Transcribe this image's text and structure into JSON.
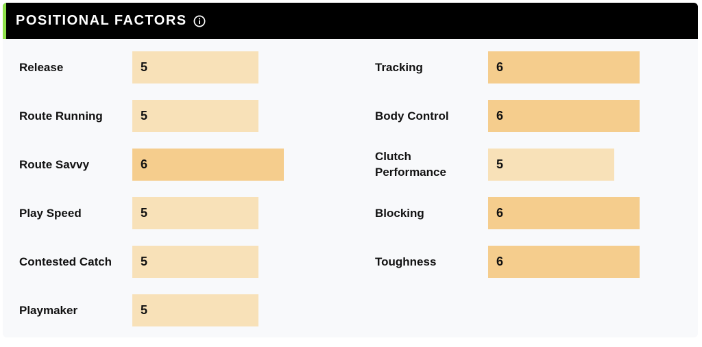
{
  "header": {
    "title": "POSITIONAL FACTORS",
    "info_icon": "info-circle-icon",
    "accent_color": "#8ee04a"
  },
  "colors": {
    "level_5": "#f8e1b8",
    "level_6": "#f5cd8d"
  },
  "factors_left": [
    {
      "label": "Release",
      "value": "5"
    },
    {
      "label": "Route Running",
      "value": "5"
    },
    {
      "label": "Route Savvy",
      "value": "6"
    },
    {
      "label": "Play Speed",
      "value": "5"
    },
    {
      "label": "Contested Catch",
      "value": "5"
    },
    {
      "label": "Playmaker",
      "value": "5"
    }
  ],
  "factors_right": [
    {
      "label": "Tracking",
      "value": "6"
    },
    {
      "label": "Body Control",
      "value": "6"
    },
    {
      "label": "Clutch Performance",
      "value": "5"
    },
    {
      "label": "Blocking",
      "value": "6"
    },
    {
      "label": "Toughness",
      "value": "6"
    }
  ]
}
